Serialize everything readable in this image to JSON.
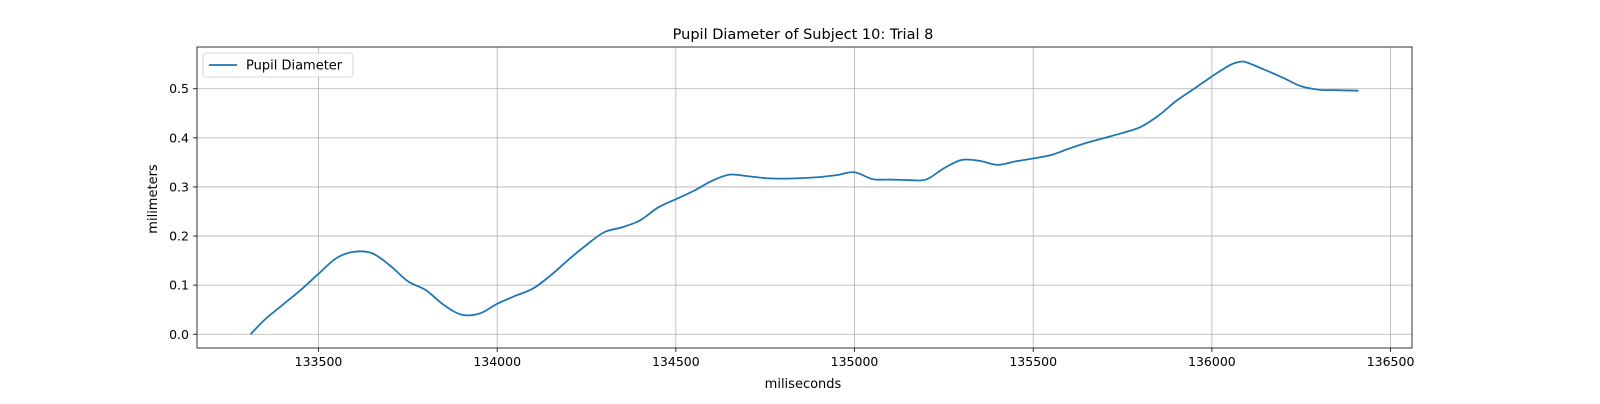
{
  "chart_data": {
    "type": "line",
    "title": "Pupil Diameter of Subject 10: Trial 8",
    "xlabel": "miliseconds",
    "ylabel": "milimeters",
    "xlim": [
      133160,
      136560
    ],
    "ylim": [
      -0.028,
      0.585
    ],
    "x_ticks": [
      133500,
      134000,
      134500,
      135000,
      135500,
      136000,
      136500
    ],
    "y_ticks": [
      0.0,
      0.1,
      0.2,
      0.3,
      0.4,
      0.5
    ],
    "y_tick_labels": [
      "0.0",
      "0.1",
      "0.2",
      "0.3",
      "0.4",
      "0.5"
    ],
    "grid": true,
    "legend_position": "top-left",
    "series": [
      {
        "name": "Pupil Diameter",
        "color": "#1f77b4",
        "x": [
          133310,
          133350,
          133400,
          133450,
          133500,
          133550,
          133600,
          133650,
          133700,
          133750,
          133800,
          133850,
          133900,
          133950,
          134000,
          134050,
          134100,
          134150,
          134200,
          134250,
          134300,
          134350,
          134400,
          134450,
          134500,
          134550,
          134600,
          134650,
          134700,
          134750,
          134800,
          134850,
          134900,
          134950,
          135000,
          135050,
          135100,
          135150,
          135200,
          135250,
          135300,
          135350,
          135400,
          135450,
          135500,
          135550,
          135600,
          135650,
          135700,
          135750,
          135800,
          135850,
          135900,
          135950,
          136000,
          136050,
          136080,
          136100,
          136150,
          136200,
          136250,
          136300,
          136350,
          136410
        ],
        "y": [
          0.0,
          0.03,
          0.06,
          0.09,
          0.123,
          0.155,
          0.168,
          0.165,
          0.14,
          0.108,
          0.09,
          0.06,
          0.04,
          0.042,
          0.062,
          0.078,
          0.093,
          0.12,
          0.152,
          0.182,
          0.208,
          0.218,
          0.232,
          0.258,
          0.275,
          0.292,
          0.312,
          0.325,
          0.322,
          0.318,
          0.317,
          0.318,
          0.32,
          0.324,
          0.33,
          0.316,
          0.315,
          0.314,
          0.315,
          0.338,
          0.355,
          0.353,
          0.345,
          0.352,
          0.358,
          0.365,
          0.378,
          0.39,
          0.4,
          0.41,
          0.422,
          0.445,
          0.475,
          0.5,
          0.525,
          0.548,
          0.555,
          0.553,
          0.538,
          0.522,
          0.505,
          0.498,
          0.497,
          0.496
        ]
      }
    ]
  }
}
